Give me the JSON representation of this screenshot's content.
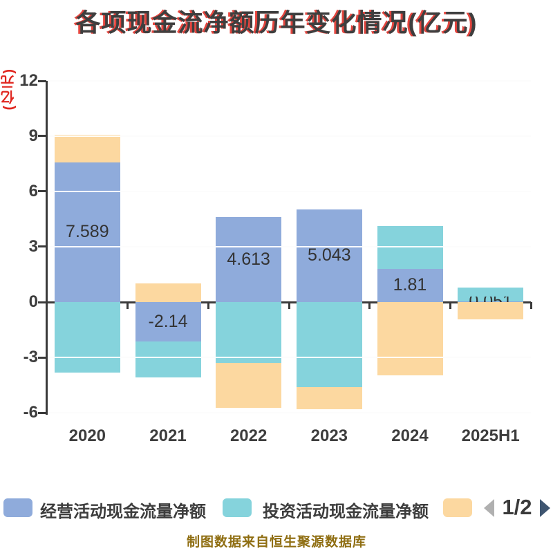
{
  "title": "各项现金流净额历年变化情况(亿元)",
  "y_axis_unit": "(亿元)",
  "caption": "制图数据来自恒生聚源数据库",
  "legend": {
    "items": [
      {
        "label": "经营活动现金流量净额",
        "color": "#8fabdb"
      },
      {
        "label": "投资活动现金流量净额",
        "color": "#85d3dc"
      },
      {
        "label": "",
        "color": "#fcd8a0"
      }
    ],
    "pager": {
      "text": "1/2"
    }
  },
  "accent_colors": {
    "operating_blue": "#8fabdb",
    "investing_teal": "#85d3dc",
    "third_series_orange": "#fcd8a0",
    "axis_dark": "#3a3a3a",
    "grid_gray": "#d6d6d6",
    "unit_label_red": "#e0251e",
    "caption_gold": "#8f6e12"
  },
  "chart_data": {
    "type": "bar",
    "stacked": true,
    "title": "各项现金流净额历年变化情况(亿元)",
    "ylabel": "(亿元)",
    "ylim": [
      -6,
      12
    ],
    "yticks": [
      12,
      9,
      6,
      3,
      0,
      -3,
      -6
    ],
    "grid": true,
    "legend_position": "bottom",
    "categories": [
      "2020",
      "2021",
      "2022",
      "2023",
      "2024",
      "2025H1"
    ],
    "series": [
      {
        "name": "经营活动现金流量净额",
        "color": "#8fabdb",
        "values": [
          7.589,
          -2.14,
          4.613,
          5.043,
          1.81,
          0.051
        ],
        "labels_shown": [
          "7.589",
          "-2.14",
          "4.613",
          "5.043",
          "1.81",
          "0.051"
        ]
      },
      {
        "name": "投资活动现金流量净额",
        "color": "#85d3dc",
        "values": [
          -3.83,
          -1.96,
          -3.31,
          -4.62,
          2.33,
          0.74
        ],
        "labels_shown": null
      },
      {
        "name": "",
        "color": "#fcd8a0",
        "values": [
          1.5,
          1.02,
          -2.44,
          -1.21,
          -3.98,
          -0.94
        ],
        "labels_shown": null
      }
    ]
  }
}
